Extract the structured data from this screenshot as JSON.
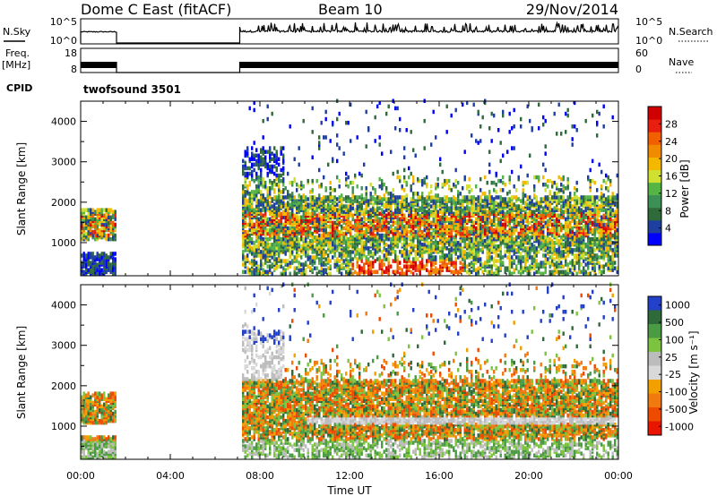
{
  "header": {
    "title": "Dome C East (fitACF)",
    "beam": "Beam 10",
    "date": "29/Nov/2014"
  },
  "noise_panel": {
    "left_label": "N.Sky",
    "left_ticks": [
      "10^5",
      "10^0"
    ],
    "right_label": "N.Search",
    "right_ticks": [
      "10^5",
      "10^0"
    ]
  },
  "freq_panel": {
    "left_label_1": "Freq.",
    "left_label_2": "[MHz]",
    "left_ticks": [
      "18",
      "8"
    ],
    "right_label": "Nave",
    "right_ticks": [
      "60",
      "0"
    ]
  },
  "cpid_panel": {
    "label": "CPID",
    "program": "twofsound 3501"
  },
  "time_axis": {
    "ticks": [
      "00:00",
      "04:00",
      "08:00",
      "12:00",
      "16:00",
      "20:00",
      "00:00"
    ],
    "label": "Time UT"
  },
  "colors": {
    "power": [
      "#0000ff",
      "#1e3fa0",
      "#2f6a3a",
      "#3c8f55",
      "#55b544",
      "#cfe030",
      "#f5b800",
      "#f08a00",
      "#f06000",
      "#e81e10",
      "#d00000"
    ],
    "velocity": [
      "#2340c8",
      "#2e6a3a",
      "#4b9a44",
      "#7cc440",
      "#bcbcbc",
      "#d8d8d8",
      "#f2a000",
      "#f07a10",
      "#ee4a00",
      "#e81500"
    ]
  },
  "chart_data": [
    {
      "type": "heatmap",
      "name": "power",
      "ylabel": "Slant Range [km]",
      "xlim_hours": [
        0,
        24
      ],
      "ylim": [
        180,
        4500
      ],
      "yticks": [
        "1000",
        "2000",
        "3000",
        "4000"
      ],
      "colorbar_label": "Power [dB]",
      "colorbar_ticks": [
        "4",
        "8",
        "12",
        "16",
        "20",
        "24",
        "28"
      ],
      "coverage_hours": [
        [
          0,
          1.6
        ],
        [
          7.1,
          24
        ]
      ]
    },
    {
      "type": "heatmap",
      "name": "velocity",
      "ylabel": "Slant Range [km]",
      "xlim_hours": [
        0,
        24
      ],
      "ylim": [
        180,
        4500
      ],
      "yticks": [
        "1000",
        "2000",
        "3000",
        "4000"
      ],
      "colorbar_label": "Velocity [m s⁻¹]",
      "colorbar_ticks": [
        "1000",
        "500",
        "100",
        "25",
        "-25",
        "-100",
        "-500",
        "-1000"
      ],
      "coverage_hours": [
        [
          0,
          1.6
        ],
        [
          7.1,
          24
        ]
      ]
    }
  ]
}
